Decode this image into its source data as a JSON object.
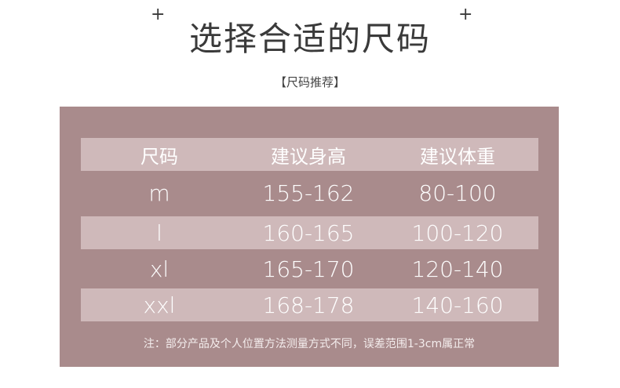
{
  "title": "选择合适的尺码",
  "subtitle": "【尺码推荐】",
  "colors": {
    "panel": "#a98b8c",
    "stripe": "#cfb9ba",
    "text": "#ffffff"
  },
  "table": {
    "headers": [
      "尺码",
      "建议身高",
      "建议体重"
    ],
    "rows": [
      [
        "m",
        "155-162",
        "80-100"
      ],
      [
        "l",
        "160-165",
        "100-120"
      ],
      [
        "xl",
        "165-170",
        "120-140"
      ],
      [
        "xxl",
        "168-178",
        "140-160"
      ]
    ]
  },
  "note": "注：部分产品及个人位置方法测量方式不同，误差范围1-3cm属正常"
}
